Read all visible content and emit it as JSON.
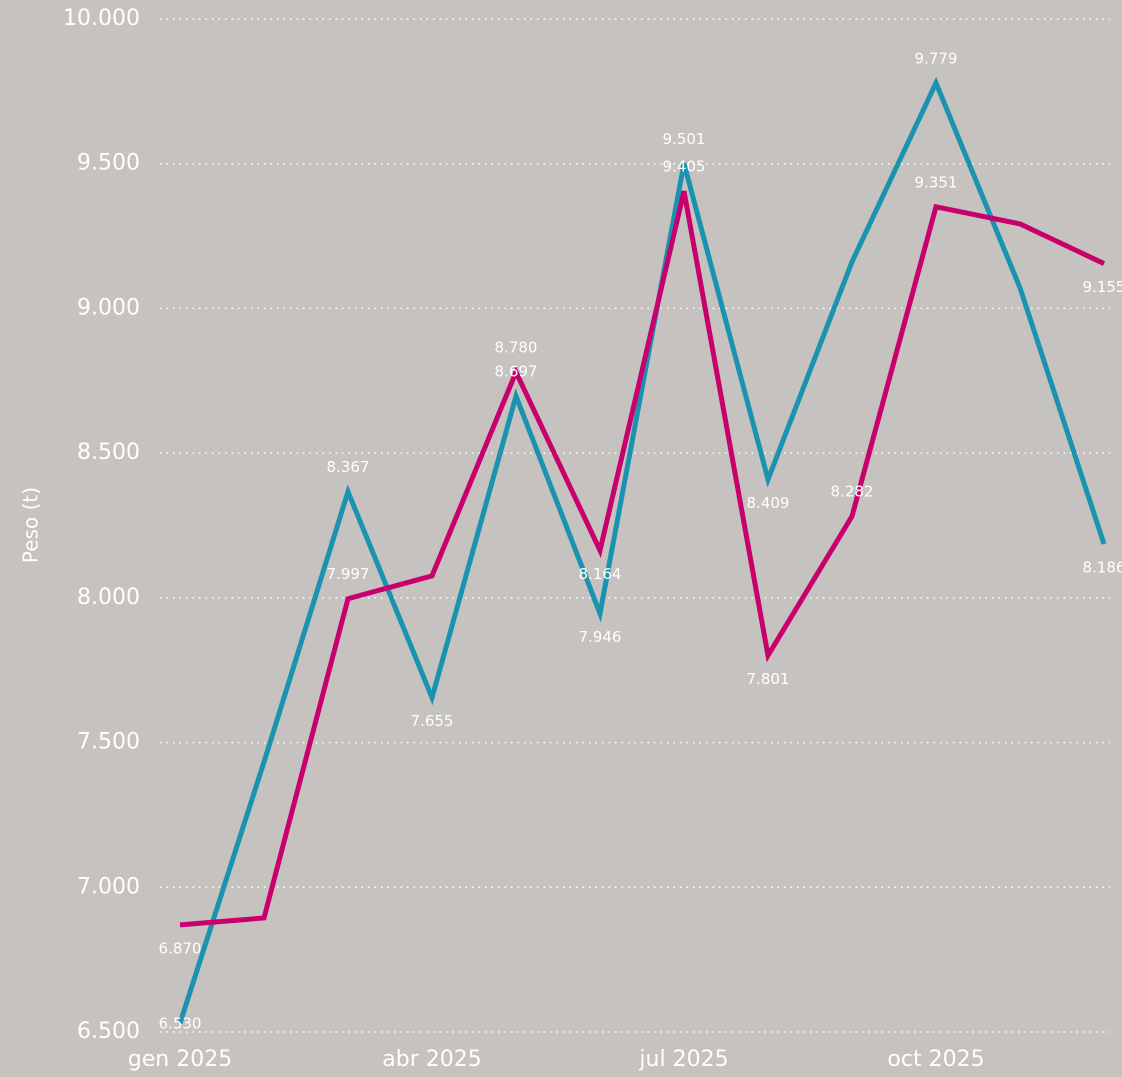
{
  "chart_data": {
    "type": "line",
    "y_label": "Peso (t)",
    "categories": [
      "gen 2025",
      null,
      null,
      "abr 2025",
      null,
      null,
      "jul 2025",
      null,
      null,
      "oct 2025",
      null,
      null
    ],
    "series": [
      {
        "color": "#1a93b0",
        "values": [
          6530,
          7433,
          8367,
          7655,
          8697,
          7946,
          9501,
          8409,
          9161,
          9779,
          9071,
          8186
        ],
        "value_labels": [
          "6.530",
          null,
          "8.367",
          "7.655",
          "8.697",
          "7.946",
          "9.501",
          "8.409",
          null,
          "9.779",
          null,
          "8.186"
        ]
      },
      {
        "color": "#c8006e",
        "values": [
          6870,
          6894,
          7997,
          8076,
          8780,
          8164,
          9405,
          7801,
          8282,
          9351,
          9292,
          9155
        ],
        "value_labels": [
          "6.870",
          null,
          "7.997",
          null,
          "8.780",
          "8.164",
          "9.405",
          "7.801",
          "8.282",
          "9.351",
          null,
          "9.155"
        ]
      }
    ],
    "ylim": [
      6500,
      10000
    ],
    "yticks": [
      {
        "value": 6500,
        "label": "6.500"
      },
      {
        "value": 7000,
        "label": "7.000"
      },
      {
        "value": 7500,
        "label": "7.500"
      },
      {
        "value": 8000,
        "label": "8.000"
      },
      {
        "value": 8500,
        "label": "8.500"
      },
      {
        "value": 9000,
        "label": "9.000"
      },
      {
        "value": 9500,
        "label": "9.500"
      },
      {
        "value": 10000,
        "label": "10.000"
      }
    ],
    "grid": true
  }
}
